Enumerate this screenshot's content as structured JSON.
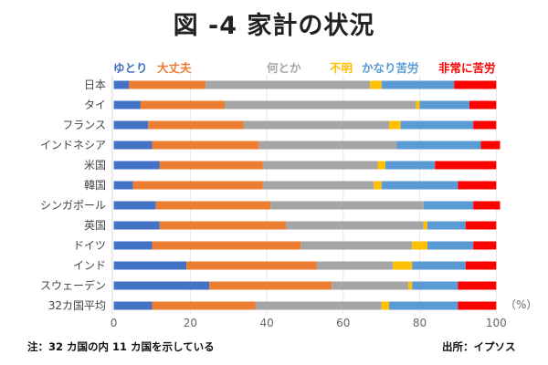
{
  "chart_data": {
    "type": "bar",
    "orientation": "horizontal",
    "stacked": true,
    "title": "図 -4 家計の状況",
    "xlabel": "",
    "ylabel": "",
    "unit_label": "（%）",
    "xlim": [
      0,
      100
    ],
    "xticks": [
      "0",
      "20",
      "40",
      "60",
      "80",
      "100"
    ],
    "grid": true,
    "legend_position": "top",
    "categories": [
      "日本",
      "タイ",
      "フランス",
      "インドネシア",
      "米国",
      "韓国",
      "シンガポール",
      "英国",
      "ドイツ",
      "インド",
      "スウェーデン",
      "32カ国平均"
    ],
    "series": [
      {
        "name": "ゆとり",
        "color": "#4472c4",
        "values": [
          4,
          7,
          9,
          10,
          12,
          5,
          11,
          12,
          10,
          19,
          25,
          10
        ]
      },
      {
        "name": "大丈夫",
        "color": "#ed7d31",
        "values": [
          20,
          22,
          25,
          28,
          27,
          34,
          30,
          33,
          39,
          34,
          32,
          27
        ]
      },
      {
        "name": "何とか",
        "color": "#a5a5a5",
        "values": [
          43,
          50,
          38,
          36,
          30,
          29,
          40,
          36,
          29,
          20,
          20,
          33
        ]
      },
      {
        "name": "不明",
        "color": "#ffc000",
        "values": [
          3,
          1,
          3,
          0,
          2,
          2,
          0,
          1,
          4,
          5,
          1,
          2
        ]
      },
      {
        "name": "かなり苦労",
        "color": "#5b9bd5",
        "values": [
          19,
          13,
          19,
          22,
          13,
          20,
          13,
          10,
          12,
          14,
          12,
          18
        ]
      },
      {
        "name": "非常に苦労",
        "color": "#ff0000",
        "values": [
          11,
          7,
          6,
          5,
          16,
          10,
          7,
          8,
          6,
          8,
          10,
          10
        ]
      }
    ]
  },
  "notes": {
    "left": "注：32 カ国の内 11 カ国を示している",
    "right": "出所：イプソス"
  }
}
